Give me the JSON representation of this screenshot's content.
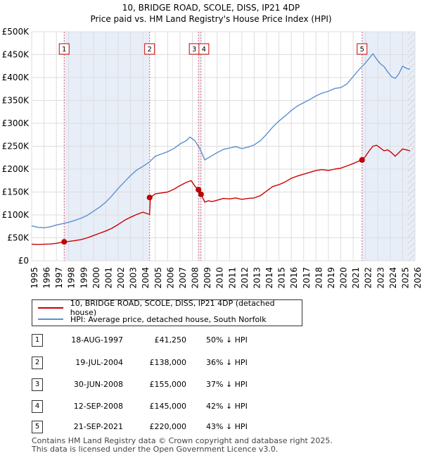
{
  "chart_data": {
    "type": "line",
    "title": "10, BRIDGE ROAD, SCOLE, DISS, IP21 4DP",
    "subtitle": "Price paid vs. HM Land Registry's House Price Index (HPI)",
    "xlabel": "",
    "ylabel": "",
    "xlim": [
      1995,
      2026
    ],
    "ylim": [
      0,
      500000
    ],
    "y_ticks": [
      0,
      50000,
      100000,
      150000,
      200000,
      250000,
      300000,
      350000,
      400000,
      450000,
      500000
    ],
    "y_tick_labels": [
      "£0",
      "£50K",
      "£100K",
      "£150K",
      "£200K",
      "£250K",
      "£300K",
      "£350K",
      "£400K",
      "£450K",
      "£500K"
    ],
    "x_ticks": [
      1995,
      1996,
      1997,
      1998,
      1999,
      2000,
      2001,
      2002,
      2003,
      2004,
      2005,
      2006,
      2007,
      2008,
      2009,
      2010,
      2011,
      2012,
      2013,
      2014,
      2015,
      2016,
      2017,
      2018,
      2019,
      2020,
      2021,
      2022,
      2023,
      2024,
      2025,
      2026
    ],
    "grid": true,
    "legend_placement": "below",
    "series": [
      {
        "name": "10, BRIDGE ROAD, SCOLE, DISS, IP21 4DP (detached house)",
        "color": "#cc0000",
        "x": [
          1995.0,
          1995.5,
          1996.0,
          1996.5,
          1997.0,
          1997.63,
          1998.0,
          1998.5,
          1999.0,
          1999.5,
          2000.0,
          2000.5,
          2001.0,
          2001.5,
          2002.0,
          2002.5,
          2003.0,
          2003.5,
          2004.0,
          2004.54,
          2004.6,
          2005.0,
          2005.5,
          2006.0,
          2006.5,
          2007.0,
          2007.5,
          2007.9,
          2008.2,
          2008.49,
          2008.7,
          2009.0,
          2009.3,
          2009.6,
          2010.0,
          2010.5,
          2011.0,
          2011.5,
          2012.0,
          2012.5,
          2013.0,
          2013.5,
          2014.0,
          2014.5,
          2015.0,
          2015.5,
          2016.0,
          2016.5,
          2017.0,
          2017.5,
          2018.0,
          2018.5,
          2019.0,
          2019.5,
          2020.0,
          2020.5,
          2021.0,
          2021.5,
          2021.72,
          2022.0,
          2022.3,
          2022.6,
          2022.9,
          2023.2,
          2023.5,
          2023.8,
          2024.1,
          2024.4,
          2024.7,
          2025.0,
          2025.3,
          2025.6
        ],
        "values": [
          36000,
          35500,
          36000,
          36500,
          38000,
          41250,
          42000,
          44000,
          46000,
          50000,
          55000,
          60000,
          65000,
          71000,
          79000,
          88000,
          95000,
          101000,
          106000,
          101000,
          138000,
          146000,
          148000,
          150000,
          156000,
          164000,
          171000,
          175000,
          163000,
          155000,
          145000,
          128000,
          131000,
          129000,
          132000,
          136000,
          135000,
          137000,
          134000,
          136000,
          137000,
          142000,
          152000,
          162000,
          166000,
          172000,
          180000,
          185000,
          189000,
          193000,
          197000,
          199000,
          197000,
          200000,
          202000,
          207000,
          212000,
          218000,
          220000,
          228000,
          240000,
          250000,
          252000,
          246000,
          240000,
          242000,
          236000,
          228000,
          236000,
          244000,
          242000,
          240000
        ]
      },
      {
        "name": "HPI: Average price, detached house, South Norfolk",
        "color": "#5b8fd1",
        "x": [
          1995.0,
          1995.5,
          1996.0,
          1996.5,
          1997.0,
          1997.5,
          1998.0,
          1998.5,
          1999.0,
          1999.5,
          2000.0,
          2000.5,
          2001.0,
          2001.5,
          2002.0,
          2002.5,
          2003.0,
          2003.5,
          2004.0,
          2004.5,
          2005.0,
          2005.5,
          2006.0,
          2006.5,
          2007.0,
          2007.5,
          2007.8,
          2008.2,
          2008.6,
          2009.0,
          2009.5,
          2010.0,
          2010.5,
          2011.0,
          2011.5,
          2012.0,
          2012.5,
          2013.0,
          2013.5,
          2014.0,
          2014.5,
          2015.0,
          2015.5,
          2016.0,
          2016.5,
          2017.0,
          2017.5,
          2018.0,
          2018.5,
          2019.0,
          2019.5,
          2020.0,
          2020.5,
          2021.0,
          2021.5,
          2022.0,
          2022.3,
          2022.6,
          2022.9,
          2023.2,
          2023.5,
          2023.8,
          2024.1,
          2024.4,
          2024.7,
          2025.0,
          2025.3,
          2025.6
        ],
        "values": [
          76000,
          73000,
          72000,
          74000,
          78000,
          81000,
          84000,
          88000,
          93000,
          99000,
          108000,
          117000,
          128000,
          142000,
          158000,
          172000,
          186000,
          198000,
          206000,
          215000,
          228000,
          233000,
          238000,
          245000,
          255000,
          262000,
          270000,
          262000,
          245000,
          220000,
          228000,
          236000,
          243000,
          246000,
          249000,
          245000,
          248000,
          253000,
          262000,
          276000,
          292000,
          305000,
          316000,
          328000,
          338000,
          345000,
          352000,
          360000,
          366000,
          370000,
          376000,
          378000,
          386000,
          402000,
          418000,
          432000,
          442000,
          452000,
          440000,
          430000,
          424000,
          412000,
          402000,
          398000,
          408000,
          425000,
          420000,
          418000
        ]
      }
    ],
    "sales": [
      {
        "num": "1",
        "year": 1997.63,
        "price": 41250
      },
      {
        "num": "2",
        "year": 2004.54,
        "price": 138000
      },
      {
        "num": "3",
        "year": 2008.49,
        "price": 155000
      },
      {
        "num": "4",
        "year": 2008.7,
        "price": 145000
      },
      {
        "num": "5",
        "year": 2021.72,
        "price": 220000
      }
    ]
  },
  "legend": {
    "property_label": "10, BRIDGE ROAD, SCOLE, DISS, IP21 4DP (detached house)",
    "hpi_label": "HPI: Average price, detached house, South Norfolk",
    "property_color": "#cc0000",
    "hpi_color": "#5b8fd1"
  },
  "sales_table": [
    {
      "num": "1",
      "date": "18-AUG-1997",
      "price": "£41,250",
      "hpi": "50% ↓ HPI"
    },
    {
      "num": "2",
      "date": "19-JUL-2004",
      "price": "£138,000",
      "hpi": "36% ↓ HPI"
    },
    {
      "num": "3",
      "date": "30-JUN-2008",
      "price": "£155,000",
      "hpi": "37% ↓ HPI"
    },
    {
      "num": "4",
      "date": "12-SEP-2008",
      "price": "£145,000",
      "hpi": "42% ↓ HPI"
    },
    {
      "num": "5",
      "date": "21-SEP-2021",
      "price": "£220,000",
      "hpi": "43% ↓ HPI"
    }
  ],
  "footer": {
    "line1": "Contains HM Land Registry data © Crown copyright and database right 2025.",
    "line2": "This data is licensed under the Open Government Licence v3.0."
  },
  "colors": {
    "grid": "#dddddd",
    "shade": "#e8eef8",
    "marker_line": "#e06070"
  }
}
